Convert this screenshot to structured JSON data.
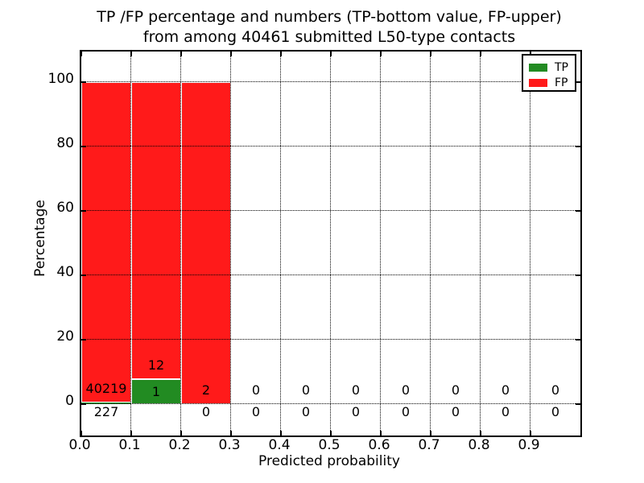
{
  "chart_data": {
    "type": "bar",
    "stacked": true,
    "title": "TP /FP percentage and numbers (TP-bottom value, FP-upper)\nfrom among 40461 submitted L50-type contacts",
    "title_line1": "TP /FP percentage and numbers (TP-bottom value, FP-upper)",
    "title_line2": "from among 40461 submitted L50-type contacts",
    "xlabel": "Predicted probability",
    "ylabel": "Percentage",
    "total_submitted_contacts": 40461,
    "xlim": [
      0.0,
      1.0
    ],
    "ylim": [
      -10,
      110
    ],
    "x_tick_labels": [
      "0.0",
      "0.1",
      "0.2",
      "0.3",
      "0.4",
      "0.5",
      "0.6",
      "0.7",
      "0.8",
      "0.9"
    ],
    "y_tick_values": [
      0,
      20,
      40,
      60,
      80,
      100
    ],
    "grid": {
      "visible": true,
      "style": "dotted",
      "color": "#000000",
      "drawn_above_bars": true
    },
    "legend": {
      "position": "upper right",
      "entries": [
        {
          "label": "TP",
          "color": "#228b22"
        },
        {
          "label": "FP",
          "color": "#ff1a1a"
        }
      ]
    },
    "colors": {
      "tp_green": "#228b22",
      "fp_red": "#ff1a1a",
      "bar_edge": "#ffffff",
      "background": "#ffffff",
      "text": "#000000",
      "axes": "#000000"
    },
    "bins": [
      {
        "x_range": [
          0.0,
          0.1
        ],
        "tp_count": 227,
        "fp_count": 40219,
        "tp_pct": 0.561,
        "fp_pct": 99.439
      },
      {
        "x_range": [
          0.1,
          0.2
        ],
        "tp_count": 1,
        "fp_count": 12,
        "tp_pct": 7.692,
        "fp_pct": 92.308
      },
      {
        "x_range": [
          0.2,
          0.3
        ],
        "tp_count": 0,
        "fp_count": 2,
        "tp_pct": 0,
        "fp_pct": 100
      },
      {
        "x_range": [
          0.3,
          0.4
        ],
        "tp_count": 0,
        "fp_count": 0,
        "tp_pct": 0,
        "fp_pct": 0
      },
      {
        "x_range": [
          0.4,
          0.5
        ],
        "tp_count": 0,
        "fp_count": 0,
        "tp_pct": 0,
        "fp_pct": 0
      },
      {
        "x_range": [
          0.5,
          0.6
        ],
        "tp_count": 0,
        "fp_count": 0,
        "tp_pct": 0,
        "fp_pct": 0
      },
      {
        "x_range": [
          0.6,
          0.7
        ],
        "tp_count": 0,
        "fp_count": 0,
        "tp_pct": 0,
        "fp_pct": 0
      },
      {
        "x_range": [
          0.7,
          0.8
        ],
        "tp_count": 0,
        "fp_count": 0,
        "tp_pct": 0,
        "fp_pct": 0
      },
      {
        "x_range": [
          0.8,
          0.9
        ],
        "tp_count": 0,
        "fp_count": 0,
        "tp_pct": 0,
        "fp_pct": 0
      },
      {
        "x_range": [
          0.9,
          1.0
        ],
        "tp_count": 0,
        "fp_count": 0,
        "tp_pct": 0,
        "fp_pct": 0
      }
    ]
  }
}
